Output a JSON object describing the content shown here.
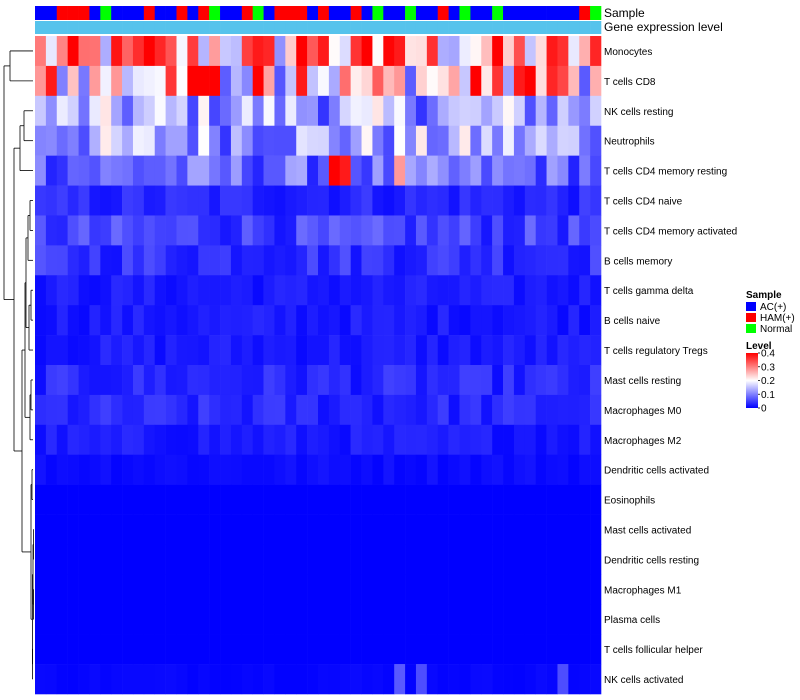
{
  "chart_data": {
    "type": "heatmap",
    "title": "",
    "annotation_tracks": [
      "Sample",
      "Gene expression level"
    ],
    "rows": [
      "Monocytes",
      "T cells CD8",
      "NK cells resting",
      "Neutrophils",
      "T cells CD4 memory resting",
      "T cells CD4 naive",
      "T cells CD4 memory activated",
      "B cells memory",
      "T cells gamma delta",
      "B cells naive",
      "T cells regulatory  Tregs",
      "Mast cells resting",
      "Macrophages M0",
      "Macrophages M2",
      "Dendritic cells activated",
      "Eosinophils",
      "Mast cells activated",
      "Dendritic cells resting",
      "Macrophages M1",
      "Plasma cells",
      "T cells follicular helper",
      "NK cells activated"
    ],
    "sample_groups": [
      "AC(+)",
      "AC(+)",
      "HAM(+)",
      "HAM(+)",
      "HAM(+)",
      "AC(+)",
      "Normal",
      "AC(+)",
      "AC(+)",
      "AC(+)",
      "HAM(+)",
      "AC(+)",
      "AC(+)",
      "HAM(+)",
      "AC(+)",
      "HAM(+)",
      "Normal",
      "AC(+)",
      "AC(+)",
      "HAM(+)",
      "Normal",
      "AC(+)",
      "HAM(+)",
      "HAM(+)",
      "HAM(+)",
      "AC(+)",
      "HAM(+)",
      "AC(+)",
      "AC(+)",
      "HAM(+)",
      "AC(+)",
      "Normal",
      "AC(+)",
      "AC(+)",
      "Normal",
      "AC(+)",
      "AC(+)",
      "HAM(+)",
      "AC(+)",
      "Normal",
      "AC(+)",
      "AC(+)",
      "Normal",
      "AC(+)",
      "AC(+)",
      "AC(+)",
      "AC(+)",
      "AC(+)",
      "AC(+)",
      "AC(+)",
      "HAM(+)",
      "Normal"
    ],
    "gene_expression_level": [
      0.9,
      0.9,
      0.9,
      0.9,
      0.9,
      0.9,
      0.9,
      0.9,
      0.9,
      0.9,
      0.9,
      0.9,
      0.9,
      0.9,
      0.9,
      0.9,
      0.9,
      0.9,
      0.9,
      0.9,
      0.9,
      0.9,
      0.9,
      0.9,
      0.9,
      0.9,
      0.9,
      0.9,
      0.9,
      0.9,
      0.9,
      0.9,
      0.9,
      0.9,
      0.9,
      0.9,
      0.9,
      0.9,
      0.9,
      0.9,
      0.9,
      0.9,
      0.9,
      0.9,
      0.9,
      0.9,
      0.9,
      0.9,
      0.9,
      0.9,
      0.9,
      0.9
    ],
    "row_base_levels": [
      0.25,
      0.22,
      0.13,
      0.13,
      0.08,
      0.03,
      0.05,
      0.04,
      0.02,
      0.02,
      0.02,
      0.03,
      0.03,
      0.02,
      0.01,
      0.0,
      0.0,
      0.0,
      0.0,
      0.0,
      0.0,
      0.005
    ],
    "emphasized_cells": [
      {
        "row": "Monocytes",
        "values": {
          "10": 0.4,
          "11": 0.37,
          "24": 0.4,
          "26": 0.38,
          "29": 0.36,
          "30": 0.4
        }
      },
      {
        "row": "T cells CD8",
        "values": {
          "1": 0.38,
          "14": 0.4,
          "15": 0.4,
          "16": 0.4,
          "20": 0.4,
          "24": 0.38,
          "40": 0.4,
          "44": 0.38,
          "45": 0.4,
          "47": 0.37
        }
      },
      {
        "row": "T cells CD4 memory resting",
        "values": {
          "27": 0.4,
          "28": 0.38,
          "33": 0.28
        }
      },
      {
        "row": "NK cells activated",
        "values": {
          "33": 0.07,
          "35": 0.06,
          "48": 0.06
        }
      }
    ],
    "legend": {
      "sample": {
        "title": "Sample",
        "items": [
          "AC(+)",
          "HAM(+)",
          "Normal"
        ]
      },
      "level": {
        "title": "Level",
        "range": [
          0,
          0.4
        ],
        "ticks": [
          "0.4",
          "0.3",
          "0.2",
          "0.1",
          "0"
        ]
      }
    },
    "colors": {
      "low": "#0000ff",
      "mid": "#ffffff",
      "high": "#ff0000",
      "AC(+)": "#0000ff",
      "HAM(+)": "#ff0000",
      "Normal": "#00ff00",
      "gene_expression_level": "#56c3ec"
    },
    "legend_position": "right",
    "dendrogram": "left"
  }
}
